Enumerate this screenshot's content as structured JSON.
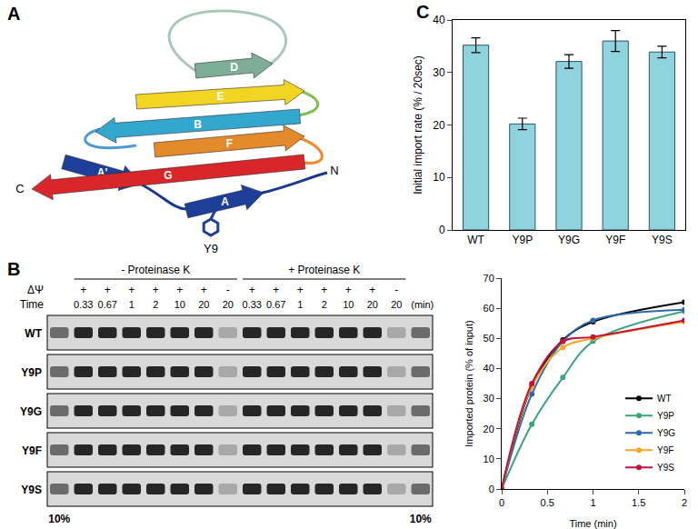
{
  "panel_labels": [
    "A",
    "B",
    "C"
  ],
  "structure": {
    "strands": [
      "D",
      "E",
      "B",
      "F",
      "A'",
      "G",
      "A"
    ],
    "termini": [
      "N",
      "C"
    ],
    "residue": "Y9"
  },
  "gel": {
    "conditions": [
      "- Proteinase K",
      "+ Proteinase K"
    ],
    "row_labels": [
      "ΔΨ",
      "Time"
    ],
    "time_unit": "(min)",
    "lanes": [
      {
        "delta_psi": "+",
        "time": "0.33"
      },
      {
        "delta_psi": "+",
        "time": "0.67"
      },
      {
        "delta_psi": "+",
        "time": "1"
      },
      {
        "delta_psi": "+",
        "time": "2"
      },
      {
        "delta_psi": "+",
        "time": "10"
      },
      {
        "delta_psi": "+",
        "time": "20"
      },
      {
        "delta_psi": "-",
        "time": "20"
      }
    ],
    "samples": [
      "WT",
      "Y9P",
      "Y9G",
      "Y9F",
      "Y9S"
    ],
    "input_label": "10%"
  },
  "chart_data": [
    {
      "type": "bar",
      "categories": [
        "WT",
        "Y9P",
        "Y9G",
        "Y9F",
        "Y9S"
      ],
      "values": [
        35.2,
        20.2,
        32.1,
        36.0,
        33.9
      ],
      "errors": [
        1.4,
        1.1,
        1.3,
        2.0,
        1.1
      ],
      "color": "#8fd3df",
      "ylabel": "Initial import rate (% / 20sec)",
      "ylim": [
        0,
        40
      ],
      "yticks": [
        0,
        10,
        20,
        30,
        40
      ],
      "grid": false
    },
    {
      "type": "line",
      "x": [
        0,
        0.33,
        0.67,
        1,
        2
      ],
      "series": [
        {
          "name": "WT",
          "color": "#000000",
          "values": [
            0,
            34,
            49.5,
            55.5,
            62
          ]
        },
        {
          "name": "Y9P",
          "color": "#3aa57a",
          "values": [
            0,
            21.5,
            37,
            49,
            59
          ]
        },
        {
          "name": "Y9G",
          "color": "#2e6aa8",
          "values": [
            0,
            31.5,
            49,
            56,
            59.5
          ]
        },
        {
          "name": "Y9F",
          "color": "#f5a623",
          "values": [
            0,
            34,
            47,
            50,
            55.5
          ]
        },
        {
          "name": "Y9S",
          "color": "#c0143c",
          "values": [
            0,
            35,
            49,
            50.5,
            56
          ]
        }
      ],
      "marker": "circle",
      "xlabel": "Time (min)",
      "ylabel": "Imported protein (% of input)",
      "xlim": [
        0,
        2
      ],
      "xticks": [
        0,
        0.5,
        1,
        1.5,
        2
      ],
      "ylim": [
        0,
        70
      ],
      "yticks": [
        0,
        10,
        20,
        30,
        40,
        50,
        60,
        70
      ],
      "legend": "lower right",
      "grid": false
    }
  ]
}
